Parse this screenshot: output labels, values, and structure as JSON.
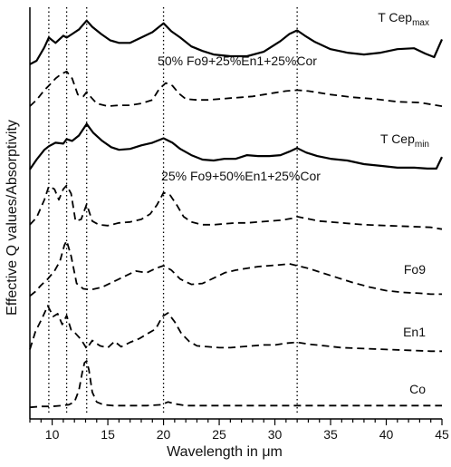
{
  "chart_data": {
    "type": "line",
    "xlabel": "Wavelength in μm",
    "ylabel": "Effective Q values/Absorptivity",
    "xlim": [
      8,
      45
    ],
    "xticks": [
      10,
      15,
      20,
      25,
      30,
      35,
      40,
      45
    ],
    "reference_lines_x": [
      9.7,
      11.3,
      13.1,
      20.0,
      32.0
    ],
    "series": [
      {
        "name": "T Cep",
        "name_sub": "max",
        "style": "solid",
        "y_range": [
          10,
          80
        ],
        "x": [
          8,
          8.6,
          9.3,
          9.7,
          10.3,
          11.0,
          11.3,
          11.8,
          12.4,
          13.1,
          13.6,
          14.4,
          15.2,
          16.0,
          17.0,
          18.0,
          19.0,
          20.0,
          20.7,
          21.5,
          22.5,
          23.5,
          24.5,
          26.0,
          27.5,
          29.0,
          30.5,
          31.3,
          32.0,
          32.7,
          33.6,
          35.0,
          36.5,
          38.0,
          39.5,
          41.0,
          42.5,
          43.5,
          44.3,
          45
        ],
        "y": [
          64,
          60,
          45,
          34,
          40,
          32,
          34,
          30,
          25,
          15,
          22,
          30,
          37,
          40,
          40,
          34,
          28,
          18,
          27,
          34,
          44,
          49,
          53,
          55,
          55,
          50,
          38,
          30,
          26,
          32,
          39,
          47,
          51,
          53,
          51,
          47,
          46,
          52,
          56,
          36
        ]
      },
      {
        "name": "50% Fo9+25%En1+25%Cor",
        "style": "dashed",
        "y_range": [
          60,
          125
        ],
        "x": [
          8,
          8.6,
          9.3,
          9.7,
          10.3,
          10.8,
          11.3,
          11.8,
          12.3,
          12.8,
          13.1,
          13.5,
          14.0,
          15.0,
          16.0,
          17.0,
          18.0,
          19.0,
          19.6,
          20.2,
          20.8,
          21.4,
          22.0,
          23.0,
          24.0,
          25.0,
          26.0,
          27.0,
          28.0,
          29.0,
          30.0,
          31.0,
          32.0,
          33.0,
          34.0,
          35.0,
          37.0,
          39.0,
          41.0,
          43.0,
          45
        ],
        "y": [
          111,
          104,
          93,
          88,
          80,
          75,
          72,
          80,
          98,
          100,
          95,
          101,
          108,
          111,
          110,
          110,
          108,
          104,
          92,
          85,
          88,
          97,
          103,
          104,
          104,
          103,
          102,
          101,
          100,
          98,
          96,
          94,
          93,
          94,
          96,
          98,
          101,
          103,
          106,
          107,
          111
        ]
      },
      {
        "name": "T Cep",
        "name_sub": "min",
        "style": "solid",
        "y_range": [
          125,
          190
        ],
        "x": [
          8,
          8.6,
          9.3,
          9.7,
          10.3,
          11.0,
          11.3,
          11.8,
          12.4,
          13.1,
          13.7,
          14.5,
          15.3,
          16.0,
          17.0,
          18.0,
          19.0,
          20.0,
          20.8,
          21.5,
          22.5,
          23.5,
          24.5,
          25.5,
          26.5,
          27.5,
          28.5,
          29.5,
          30.5,
          31.3,
          32.0,
          32.8,
          33.8,
          35.0,
          36.5,
          38.0,
          39.5,
          41.0,
          42.5,
          43.7,
          44.5,
          45
        ],
        "y": [
          182,
          171,
          160,
          156,
          152,
          153,
          148,
          150,
          144,
          131,
          141,
          150,
          157,
          160,
          159,
          155,
          152,
          147,
          152,
          159,
          166,
          171,
          172,
          170,
          170,
          166,
          167,
          167,
          166,
          162,
          158,
          163,
          167,
          170,
          172,
          176,
          178,
          180,
          180,
          181,
          181,
          168
        ]
      },
      {
        "name": "25% Fo9+50%En1+25%Cor",
        "style": "dashed",
        "y_range": [
          190,
          260
        ],
        "x": [
          8,
          8.6,
          9.3,
          9.7,
          10.2,
          10.6,
          11.0,
          11.3,
          11.7,
          12.1,
          12.6,
          13.1,
          13.6,
          14.2,
          15.0,
          16.0,
          17.0,
          18.0,
          18.8,
          19.4,
          20.0,
          20.6,
          21.2,
          21.8,
          22.5,
          23.5,
          24.5,
          25.5,
          26.5,
          27.5,
          28.5,
          29.5,
          30.5,
          31.5,
          32.0,
          32.8,
          34.0,
          36.0,
          38.0,
          40.0,
          42.0,
          44.0,
          45
        ],
        "y": [
          244,
          236,
          216,
          201,
          204,
          216,
          204,
          200,
          209,
          240,
          238,
          221,
          240,
          244,
          245,
          242,
          241,
          238,
          232,
          222,
          208,
          211,
          222,
          235,
          241,
          244,
          244,
          243,
          242,
          242,
          241,
          240,
          239,
          237,
          235,
          237,
          240,
          242,
          244,
          245,
          246,
          247,
          249
        ]
      },
      {
        "name": "Fo9",
        "style": "dashed",
        "y_range": [
          260,
          325
        ],
        "x": [
          8,
          8.5,
          9.0,
          9.6,
          10.2,
          10.7,
          11.1,
          11.3,
          11.7,
          12.2,
          12.8,
          13.5,
          14.5,
          15.5,
          16.5,
          17.5,
          18.5,
          19.3,
          20.0,
          20.7,
          21.5,
          22.5,
          23.5,
          24.5,
          25.5,
          26.5,
          27.5,
          28.5,
          29.5,
          30.5,
          31.3,
          32.0,
          33.0,
          34.0,
          35.5,
          37.0,
          38.5,
          40.0,
          41.5,
          43.0,
          44.0,
          45
        ],
        "y": [
          324,
          319,
          312,
          305,
          296,
          285,
          267,
          262,
          279,
          310,
          316,
          317,
          314,
          308,
          302,
          296,
          298,
          293,
          290,
          295,
          305,
          311,
          310,
          304,
          298,
          295,
          293,
          291,
          290,
          289,
          288,
          290,
          293,
          297,
          303,
          309,
          314,
          318,
          320,
          321,
          322,
          322
        ]
      },
      {
        "name": "En1",
        "style": "dashed",
        "y_range": [
          325,
          395
        ],
        "x": [
          8,
          8.5,
          9.1,
          9.6,
          10.1,
          10.5,
          10.9,
          11.3,
          11.7,
          12.1,
          12.6,
          13.1,
          13.6,
          14.3,
          15.0,
          15.6,
          16.2,
          17.0,
          17.8,
          18.6,
          19.3,
          19.9,
          20.4,
          21.0,
          21.6,
          22.3,
          23.0,
          24.0,
          25.0,
          26.0,
          27.0,
          28.0,
          29.0,
          30.0,
          31.0,
          32.0,
          33.0,
          34.5,
          36.0,
          38.0,
          40.0,
          42.0,
          44.0,
          45
        ],
        "y": [
          384,
          364,
          349,
          335,
          347,
          344,
          356,
          346,
          362,
          366,
          373,
          383,
          374,
          380,
          382,
          375,
          381,
          376,
          372,
          366,
          361,
          347,
          343,
          353,
          366,
          375,
          380,
          381,
          382,
          382,
          381,
          380,
          379,
          379,
          377,
          376,
          378,
          380,
          382,
          383,
          384,
          385,
          386,
          386
        ]
      },
      {
        "name": "Co",
        "style": "dashed",
        "y_range": [
          395,
          455
        ],
        "x": [
          8,
          9.0,
          10.0,
          10.8,
          11.5,
          12.0,
          12.4,
          12.7,
          12.9,
          13.1,
          13.3,
          13.6,
          14.0,
          14.6,
          15.5,
          17.0,
          18.5,
          19.8,
          20.4,
          21.0,
          22.0,
          24.0,
          27.0,
          30.0,
          33.0,
          36.0,
          39.0,
          42.0,
          45
        ],
        "y": [
          449,
          448,
          448,
          447,
          446,
          443,
          430,
          410,
          399,
          397,
          407,
          432,
          443,
          446,
          447,
          447,
          447,
          446,
          443,
          445,
          447,
          447,
          447,
          447,
          447,
          447,
          447,
          447,
          447
        ]
      }
    ]
  }
}
